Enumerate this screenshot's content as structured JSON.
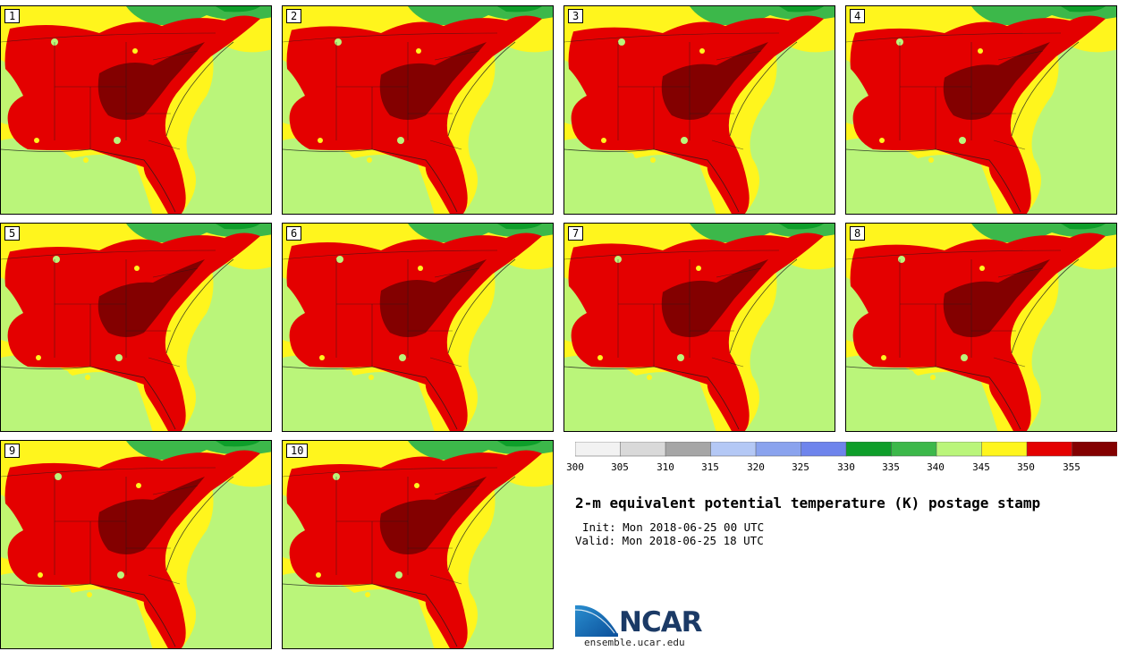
{
  "title": "2-m equivalent potential temperature (K) postage stamp",
  "init": "Init: Mon 2018-06-25 00 UTC",
  "valid": "Valid: Mon 2018-06-25 18 UTC",
  "logo": {
    "name": "NCAR",
    "url": "ensemble.ucar.edu"
  },
  "members": [
    "1",
    "2",
    "3",
    "4",
    "5",
    "6",
    "7",
    "8",
    "9",
    "10"
  ],
  "colorbar": {
    "ticks": [
      "300",
      "305",
      "310",
      "315",
      "320",
      "325",
      "330",
      "335",
      "340",
      "345",
      "350",
      "355"
    ],
    "colors": [
      "#f2f2f2",
      "#d9d9d9",
      "#a6a6a6",
      "#b4c8f5",
      "#8aa3ee",
      "#6e84ec",
      "#0e9e2a",
      "#3cb84a",
      "#baf57a",
      "#fff51d",
      "#e40000",
      "#830000"
    ]
  },
  "map_colors": {
    "ocean_light": "#baf57a",
    "north_green": "#3cb84a",
    "dark_green": "#0e9e2a",
    "yellow": "#fff51d",
    "red": "#e40000",
    "dark_red": "#830000",
    "borders": "#1a1a1a"
  }
}
